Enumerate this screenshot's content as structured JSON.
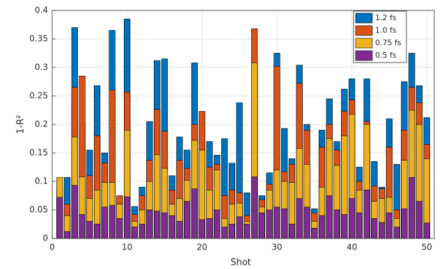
{
  "chart_data": {
    "type": "bar",
    "xlabel": "Shot",
    "ylabel": "1-R²",
    "x": [
      1,
      2,
      3,
      4,
      5,
      6,
      7,
      8,
      9,
      10,
      11,
      12,
      13,
      14,
      15,
      16,
      17,
      18,
      19,
      20,
      21,
      22,
      23,
      24,
      25,
      26,
      27,
      28,
      29,
      30,
      31,
      32,
      33,
      34,
      35,
      36,
      37,
      38,
      39,
      40,
      41,
      42,
      43,
      44,
      45,
      46,
      47,
      48,
      49,
      50
    ],
    "series": [
      {
        "name": "1.2 fs",
        "color": "#0072bd",
        "values": [
          0.09,
          0.107,
          0.37,
          0.2,
          0.155,
          0.268,
          0.15,
          0.365,
          0.07,
          0.385,
          0.056,
          0.09,
          0.205,
          0.312,
          0.315,
          0.11,
          0.178,
          0.155,
          0.308,
          0.15,
          0.17,
          0.146,
          0.175,
          0.132,
          0.238,
          0.08,
          0.3,
          0.075,
          0.115,
          0.325,
          0.193,
          0.14,
          0.304,
          0.2,
          0.052,
          0.19,
          0.245,
          0.17,
          0.262,
          0.28,
          0.125,
          0.28,
          0.135,
          0.09,
          0.21,
          0.13,
          0.275,
          0.325,
          0.268,
          0.212
        ]
      },
      {
        "name": "1.0 fs",
        "color": "#d95319",
        "values": [
          0.08,
          0.06,
          0.265,
          0.285,
          0.11,
          0.18,
          0.132,
          0.26,
          0.075,
          0.257,
          0.042,
          0.075,
          0.137,
          0.226,
          0.188,
          0.085,
          0.137,
          0.123,
          0.2,
          0.223,
          0.125,
          0.13,
          0.075,
          0.085,
          0.08,
          0.04,
          0.368,
          0.068,
          0.095,
          0.302,
          0.117,
          0.13,
          0.272,
          0.19,
          0.045,
          0.16,
          0.2,
          0.155,
          0.223,
          0.243,
          0.1,
          0.205,
          0.092,
          0.087,
          0.16,
          0.05,
          0.19,
          0.265,
          0.238,
          0.165
        ]
      },
      {
        "name": "0.75 fs",
        "color": "#edb120",
        "values": [
          0.107,
          0.04,
          0.178,
          0.108,
          0.07,
          0.085,
          0.098,
          0.098,
          0.06,
          0.19,
          0.03,
          0.05,
          0.1,
          0.147,
          0.123,
          0.06,
          0.07,
          0.102,
          0.172,
          0.155,
          0.085,
          0.12,
          0.035,
          0.06,
          0.062,
          0.03,
          0.308,
          0.055,
          0.085,
          0.12,
          0.1,
          0.098,
          0.158,
          0.13,
          0.03,
          0.09,
          0.175,
          0.128,
          0.18,
          0.218,
          0.085,
          0.2,
          0.065,
          0.07,
          0.072,
          0.035,
          0.137,
          0.225,
          0.2,
          0.14
        ]
      },
      {
        "name": "0.5 fs",
        "color": "#7e2f8e",
        "values": [
          0.072,
          0.012,
          0.093,
          0.042,
          0.03,
          0.025,
          0.055,
          0.058,
          0.035,
          0.073,
          0.02,
          0.025,
          0.05,
          0.048,
          0.045,
          0.04,
          0.03,
          0.065,
          0.087,
          0.033,
          0.035,
          0.05,
          0.02,
          0.025,
          0.038,
          0.025,
          0.108,
          0.045,
          0.05,
          0.055,
          0.052,
          0.025,
          0.07,
          0.055,
          0.018,
          0.04,
          0.075,
          0.05,
          0.042,
          0.07,
          0.045,
          0.085,
          0.035,
          0.028,
          0.045,
          0.02,
          0.052,
          0.107,
          0.065,
          0.027
        ]
      }
    ],
    "xlim": [
      0,
      51
    ],
    "xticks": [
      0,
      10,
      20,
      30,
      40,
      50
    ],
    "ylim": [
      0,
      0.4
    ],
    "yticks": [
      0,
      0.05,
      0.1,
      0.15,
      0.2,
      0.25,
      0.3,
      0.35,
      0.4
    ],
    "grid": true,
    "legend": "northeast"
  }
}
